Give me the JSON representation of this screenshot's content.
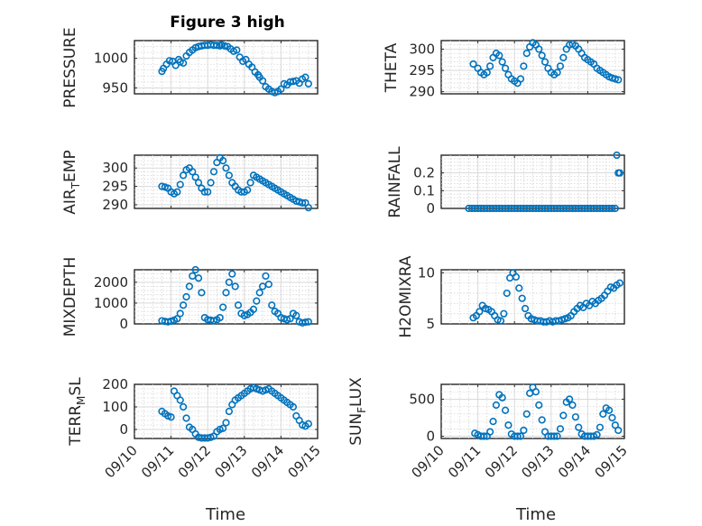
{
  "figure_title": "Figure 3 high",
  "marker_color": "#0072BD",
  "xaxis": {
    "label": "Time",
    "range": [
      "09/10",
      "09/15"
    ],
    "ticks": [
      "09/10",
      "09/11",
      "09/12",
      "09/13",
      "09/14",
      "09/15"
    ]
  },
  "chart_data": [
    {
      "type": "scatter",
      "ylabel": "PRESSURE",
      "ylim": [
        940,
        1030
      ],
      "yticks": [
        950,
        1000
      ],
      "x": [
        "09/10 18:00",
        "09/10 19:00",
        "09/10 21:00",
        "09/10 23:00",
        "09/11 01:00",
        "09/11 03:00",
        "09/11 05:00",
        "09/11 06:00",
        "09/11 08:00",
        "09/11 10:00",
        "09/11 12:00",
        "09/11 14:00",
        "09/11 16:00",
        "09/11 18:00",
        "09/11 20:00",
        "09/11 22:00",
        "09/12 00:00",
        "09/12 02:00",
        "09/12 04:00",
        "09/12 06:00",
        "09/12 08:00",
        "09/12 09:00",
        "09/12 11:00",
        "09/12 13:00",
        "09/12 15:00",
        "09/12 17:00",
        "09/12 19:00",
        "09/12 21:00",
        "09/12 23:00",
        "09/13 01:00",
        "09/13 03:00",
        "09/13 05:00",
        "09/13 07:00",
        "09/13 09:00",
        "09/13 10:00",
        "09/13 12:00",
        "09/13 14:00",
        "09/13 16:00",
        "09/13 18:00",
        "09/13 20:00",
        "09/13 22:00",
        "09/14 00:00",
        "09/14 02:00",
        "09/14 04:00",
        "09/14 06:00",
        "09/14 08:00",
        "09/14 10:00",
        "09/14 12:00",
        "09/14 14:00",
        "09/14 16:00",
        "09/14 18:00"
      ],
      "y": [
        978,
        983,
        990,
        996,
        995,
        988,
        998,
        994,
        992,
        1004,
        1010,
        1014,
        1018,
        1020,
        1021,
        1022,
        1022,
        1023,
        1022,
        1022,
        1021,
        1023,
        1021,
        1020,
        1016,
        1012,
        1014,
        1002,
        995,
        998,
        990,
        985,
        977,
        972,
        968,
        962,
        952,
        948,
        944,
        942,
        944,
        948,
        957,
        955,
        960,
        961,
        962,
        958,
        965,
        968,
        957
      ]
    },
    {
      "type": "scatter",
      "ylabel": "THETA",
      "ylim": [
        289.5,
        302
      ],
      "yticks": [
        290,
        295,
        300
      ],
      "x": [
        "09/10 21:00",
        "09/11 00:00",
        "09/11 02:00",
        "09/11 04:00",
        "09/11 06:00",
        "09/11 08:00",
        "09/11 10:00",
        "09/11 12:00",
        "09/11 14:00",
        "09/11 16:00",
        "09/11 18:00",
        "09/11 20:00",
        "09/11 22:00",
        "09/12 00:00",
        "09/12 02:00",
        "09/12 04:00",
        "09/12 06:00",
        "09/12 08:00",
        "09/12 10:00",
        "09/12 12:00",
        "09/12 14:00",
        "09/12 16:00",
        "09/12 18:00",
        "09/12 20:00",
        "09/12 22:00",
        "09/13 00:00",
        "09/13 02:00",
        "09/13 04:00",
        "09/13 06:00",
        "09/13 08:00",
        "09/13 10:00",
        "09/13 12:00",
        "09/13 14:00",
        "09/13 16:00",
        "09/13 18:00",
        "09/13 20:00",
        "09/13 22:00",
        "09/14 00:00",
        "09/14 02:00",
        "09/14 04:00",
        "09/14 06:00",
        "09/14 08:00",
        "09/14 10:00",
        "09/14 12:00",
        "09/14 14:00",
        "09/14 16:00",
        "09/14 18:00",
        "09/14 20:00"
      ],
      "y": [
        296.5,
        295.5,
        294.5,
        294,
        294.5,
        296,
        298,
        299,
        298.5,
        297,
        295.5,
        294,
        293,
        292.5,
        292,
        293,
        296,
        299,
        300.5,
        301.5,
        301,
        300,
        298.5,
        297,
        295.5,
        294.5,
        294,
        294.5,
        296,
        298,
        300,
        301,
        301.2,
        300.8,
        300,
        299,
        298,
        297.5,
        297,
        296.5,
        295.5,
        295,
        294.5,
        294,
        293.5,
        293.2,
        293,
        292.8
      ]
    },
    {
      "type": "scatter",
      "ylabel": "AIR_TEMP",
      "ylim": [
        289,
        303.5
      ],
      "yticks": [
        290,
        295,
        300
      ],
      "x": [
        "09/10 18:00",
        "09/10 20:00",
        "09/10 22:00",
        "09/11 00:00",
        "09/11 02:00",
        "09/11 04:00",
        "09/11 06:00",
        "09/11 08:00",
        "09/11 10:00",
        "09/11 12:00",
        "09/11 14:00",
        "09/11 16:00",
        "09/11 18:00",
        "09/11 20:00",
        "09/11 22:00",
        "09/12 00:00",
        "09/12 02:00",
        "09/12 04:00",
        "09/12 06:00",
        "09/12 08:00",
        "09/12 10:00",
        "09/12 12:00",
        "09/12 14:00",
        "09/12 16:00",
        "09/12 18:00",
        "09/12 20:00",
        "09/12 22:00",
        "09/13 00:00",
        "09/13 02:00",
        "09/13 04:00",
        "09/13 06:00",
        "09/13 08:00",
        "09/13 10:00",
        "09/13 12:00",
        "09/13 14:00",
        "09/13 16:00",
        "09/13 18:00",
        "09/13 20:00",
        "09/13 22:00",
        "09/14 00:00",
        "09/14 02:00",
        "09/14 04:00",
        "09/14 06:00",
        "09/14 08:00",
        "09/14 10:00",
        "09/14 12:00",
        "09/14 14:00",
        "09/14 16:00",
        "09/14 18:00"
      ],
      "y": [
        295,
        294.8,
        294.5,
        293.5,
        293,
        293.5,
        295.5,
        298,
        299.5,
        300,
        299,
        297.5,
        296,
        294.5,
        293.5,
        293.5,
        296,
        299,
        301.5,
        302.8,
        302,
        300,
        298,
        296,
        295,
        294,
        293.5,
        293.5,
        294,
        296,
        298,
        297.5,
        297,
        296.5,
        296,
        295.5,
        295,
        294.5,
        294,
        293.5,
        293,
        292.5,
        292,
        291.5,
        291,
        290.8,
        290.5,
        290.5,
        289.2
      ]
    },
    {
      "type": "scatter",
      "ylabel": "RAINFALL",
      "ylim": [
        0,
        0.3
      ],
      "yticks": [
        0,
        0.1,
        0.2
      ],
      "x": [
        "09/10 18:00",
        "09/10 20:00",
        "09/10 22:00",
        "09/11 00:00",
        "09/11 02:00",
        "09/11 04:00",
        "09/11 06:00",
        "09/11 08:00",
        "09/11 10:00",
        "09/11 12:00",
        "09/11 14:00",
        "09/11 16:00",
        "09/11 18:00",
        "09/11 20:00",
        "09/11 22:00",
        "09/12 00:00",
        "09/12 02:00",
        "09/12 04:00",
        "09/12 06:00",
        "09/12 08:00",
        "09/12 10:00",
        "09/12 12:00",
        "09/12 14:00",
        "09/12 16:00",
        "09/12 18:00",
        "09/12 20:00",
        "09/12 22:00",
        "09/13 00:00",
        "09/13 02:00",
        "09/13 04:00",
        "09/13 06:00",
        "09/13 08:00",
        "09/13 10:00",
        "09/13 12:00",
        "09/13 14:00",
        "09/13 16:00",
        "09/13 18:00",
        "09/13 20:00",
        "09/13 22:00",
        "09/14 00:00",
        "09/14 02:00",
        "09/14 04:00",
        "09/14 06:00",
        "09/14 08:00",
        "09/14 10:00",
        "09/14 12:00",
        "09/14 14:00",
        "09/14 16:00",
        "09/14 18:00",
        "09/14 19:00",
        "09/14 20:00",
        "09/14 21:00"
      ],
      "y": [
        0,
        0,
        0,
        0,
        0,
        0,
        0,
        0,
        0,
        0,
        0,
        0,
        0,
        0,
        0,
        0,
        0,
        0,
        0,
        0,
        0,
        0,
        0,
        0,
        0,
        0,
        0,
        0,
        0,
        0,
        0,
        0,
        0,
        0,
        0,
        0,
        0,
        0,
        0,
        0,
        0,
        0,
        0,
        0,
        0,
        0,
        0,
        0,
        0,
        0.3,
        0.2,
        0.2
      ]
    },
    {
      "type": "scatter",
      "ylabel": "MIXDEPTH",
      "ylim": [
        0,
        2600
      ],
      "yticks": [
        0,
        1000,
        2000
      ],
      "x": [
        "09/10 18:00",
        "09/10 20:00",
        "09/10 22:00",
        "09/11 00:00",
        "09/11 02:00",
        "09/11 04:00",
        "09/11 06:00",
        "09/11 08:00",
        "09/11 10:00",
        "09/11 12:00",
        "09/11 14:00",
        "09/11 16:00",
        "09/11 18:00",
        "09/11 20:00",
        "09/11 22:00",
        "09/12 00:00",
        "09/12 02:00",
        "09/12 04:00",
        "09/12 06:00",
        "09/12 08:00",
        "09/12 10:00",
        "09/12 12:00",
        "09/12 14:00",
        "09/12 16:00",
        "09/12 18:00",
        "09/12 20:00",
        "09/12 22:00",
        "09/13 00:00",
        "09/13 02:00",
        "09/13 04:00",
        "09/13 06:00",
        "09/13 08:00",
        "09/13 10:00",
        "09/13 12:00",
        "09/13 14:00",
        "09/13 16:00",
        "09/13 18:00",
        "09/13 20:00",
        "09/13 22:00",
        "09/14 00:00",
        "09/14 02:00",
        "09/14 04:00",
        "09/14 06:00",
        "09/14 08:00",
        "09/14 10:00",
        "09/14 12:00",
        "09/14 14:00",
        "09/14 16:00",
        "09/14 18:00"
      ],
      "y": [
        150,
        120,
        100,
        130,
        180,
        250,
        500,
        900,
        1300,
        1800,
        2300,
        2600,
        2200,
        1500,
        300,
        200,
        180,
        150,
        200,
        300,
        800,
        1500,
        2000,
        2400,
        1800,
        900,
        500,
        400,
        450,
        550,
        700,
        1100,
        1500,
        1800,
        2300,
        1900,
        900,
        600,
        500,
        300,
        250,
        200,
        250,
        500,
        400,
        100,
        50,
        80,
        100
      ]
    },
    {
      "type": "scatter",
      "ylabel": "H2OMIXRA",
      "ylim": [
        5,
        10.3
      ],
      "yticks": [
        5,
        10
      ],
      "x": [
        "09/10 21:00",
        "09/10 23:00",
        "09/11 01:00",
        "09/11 03:00",
        "09/11 05:00",
        "09/11 07:00",
        "09/11 09:00",
        "09/11 11:00",
        "09/11 13:00",
        "09/11 15:00",
        "09/11 17:00",
        "09/11 19:00",
        "09/11 21:00",
        "09/11 23:00",
        "09/12 01:00",
        "09/12 03:00",
        "09/12 05:00",
        "09/12 07:00",
        "09/12 09:00",
        "09/12 11:00",
        "09/12 13:00",
        "09/12 15:00",
        "09/12 17:00",
        "09/12 19:00",
        "09/12 21:00",
        "09/12 23:00",
        "09/13 01:00",
        "09/13 03:00",
        "09/13 05:00",
        "09/13 07:00",
        "09/13 09:00",
        "09/13 11:00",
        "09/13 13:00",
        "09/13 15:00",
        "09/13 17:00",
        "09/13 19:00",
        "09/13 21:00",
        "09/13 23:00",
        "09/14 01:00",
        "09/14 03:00",
        "09/14 05:00",
        "09/14 07:00",
        "09/14 09:00",
        "09/14 11:00",
        "09/14 13:00",
        "09/14 15:00",
        "09/14 17:00",
        "09/14 19:00",
        "09/14 21:00"
      ],
      "y": [
        5.6,
        5.8,
        6.2,
        6.8,
        6.5,
        6.4,
        6.2,
        5.8,
        5.4,
        5.3,
        6,
        8,
        9.5,
        10,
        9.6,
        8.5,
        7.5,
        6.5,
        5.8,
        5.5,
        5.4,
        5.3,
        5.3,
        5.2,
        5.2,
        5.3,
        5.2,
        5.3,
        5.3,
        5.4,
        5.5,
        5.6,
        5.8,
        6.2,
        6.5,
        6.8,
        6.6,
        7,
        6.8,
        7.2,
        7,
        7.3,
        7.5,
        7.8,
        8.2,
        8.6,
        8.5,
        8.8,
        9
      ]
    },
    {
      "type": "scatter",
      "ylabel": "TERR_MSL",
      "ylim": [
        -40,
        200
      ],
      "yticks": [
        0,
        100,
        200
      ],
      "x": [
        "09/10 18:00",
        "09/10 20:00",
        "09/10 22:00",
        "09/11 00:00",
        "09/11 02:00",
        "09/11 04:00",
        "09/11 06:00",
        "09/11 08:00",
        "09/11 10:00",
        "09/11 12:00",
        "09/11 14:00",
        "09/11 16:00",
        "09/11 18:00",
        "09/11 20:00",
        "09/11 22:00",
        "09/12 00:00",
        "09/12 02:00",
        "09/12 04:00",
        "09/12 06:00",
        "09/12 08:00",
        "09/12 10:00",
        "09/12 12:00",
        "09/12 14:00",
        "09/12 16:00",
        "09/12 18:00",
        "09/12 20:00",
        "09/12 22:00",
        "09/13 00:00",
        "09/13 02:00",
        "09/13 04:00",
        "09/13 06:00",
        "09/13 08:00",
        "09/13 10:00",
        "09/13 12:00",
        "09/13 14:00",
        "09/13 16:00",
        "09/13 18:00",
        "09/13 20:00",
        "09/13 22:00",
        "09/14 00:00",
        "09/14 02:00",
        "09/14 04:00",
        "09/14 06:00",
        "09/14 08:00",
        "09/14 10:00",
        "09/14 12:00",
        "09/14 14:00",
        "09/14 16:00",
        "09/14 18:00"
      ],
      "y": [
        80,
        70,
        60,
        55,
        170,
        150,
        130,
        100,
        50,
        10,
        0,
        -20,
        -35,
        -38,
        -38,
        -38,
        -35,
        -30,
        -10,
        0,
        5,
        30,
        80,
        110,
        130,
        140,
        150,
        160,
        170,
        180,
        185,
        180,
        175,
        170,
        175,
        180,
        170,
        160,
        150,
        140,
        130,
        120,
        110,
        100,
        60,
        40,
        20,
        15,
        25
      ]
    },
    {
      "type": "scatter",
      "ylabel": "SUN_FLUX",
      "ylim": [
        -30,
        700
      ],
      "yticks": [
        0,
        500
      ],
      "x": [
        "09/10 22:00",
        "09/11 00:00",
        "09/11 02:00",
        "09/11 04:00",
        "09/11 06:00",
        "09/11 08:00",
        "09/11 10:00",
        "09/11 12:00",
        "09/11 14:00",
        "09/11 16:00",
        "09/11 18:00",
        "09/11 20:00",
        "09/11 22:00",
        "09/12 00:00",
        "09/12 02:00",
        "09/12 04:00",
        "09/12 06:00",
        "09/12 08:00",
        "09/12 10:00",
        "09/12 12:00",
        "09/12 14:00",
        "09/12 16:00",
        "09/12 18:00",
        "09/12 20:00",
        "09/12 22:00",
        "09/13 00:00",
        "09/13 02:00",
        "09/13 04:00",
        "09/13 06:00",
        "09/13 08:00",
        "09/13 10:00",
        "09/13 12:00",
        "09/13 14:00",
        "09/13 16:00",
        "09/13 18:00",
        "09/13 20:00",
        "09/13 22:00",
        "09/14 00:00",
        "09/14 02:00",
        "09/14 04:00",
        "09/14 06:00",
        "09/14 08:00",
        "09/14 10:00",
        "09/14 12:00",
        "09/14 14:00",
        "09/14 16:00",
        "09/14 18:00",
        "09/14 20:00"
      ],
      "y": [
        40,
        20,
        0,
        0,
        0,
        60,
        200,
        420,
        560,
        520,
        350,
        150,
        30,
        0,
        0,
        0,
        80,
        300,
        580,
        660,
        600,
        420,
        220,
        60,
        0,
        0,
        0,
        0,
        100,
        280,
        460,
        500,
        420,
        260,
        120,
        30,
        0,
        0,
        0,
        0,
        20,
        120,
        300,
        380,
        350,
        250,
        150,
        80
      ]
    }
  ]
}
